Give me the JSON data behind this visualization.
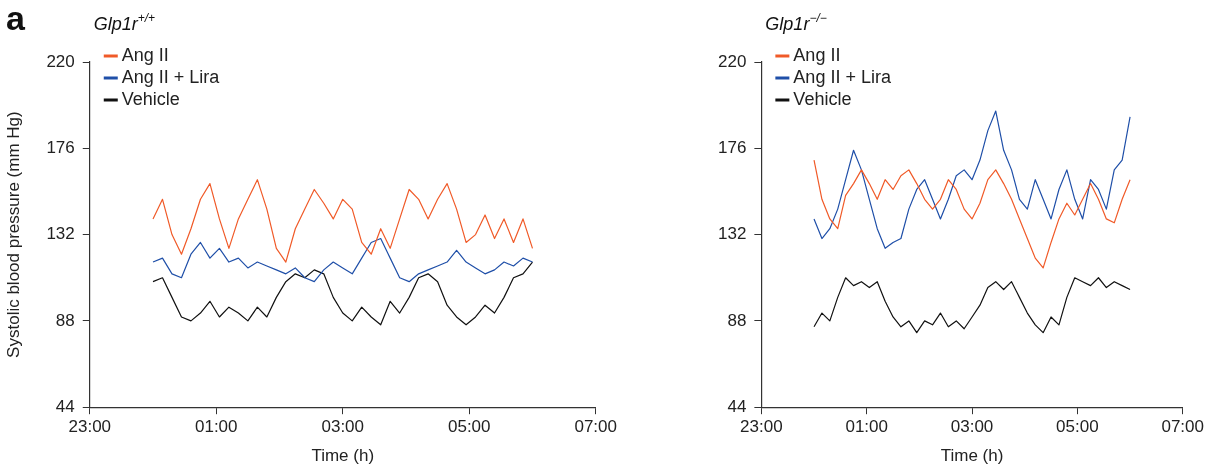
{
  "chart_data": [
    {
      "type": "line",
      "title": "Glp1r$^{+/+}$",
      "xlabel": "Time (h)",
      "ylabel": "Systolic blood pressure (mm Hg)",
      "annotations": [
        "a"
      ],
      "legend": "top left",
      "marker": "none",
      "line_style": "solid",
      "grid": false,
      "xlim": [
        "2000-01-01T23:00",
        "2000-01-02T07:00"
      ],
      "xticks": [
        {
          "value": "2000-01-01T23:00",
          "label": "23:00"
        },
        {
          "value": "2000-01-02T01:00",
          "label": "01:00"
        },
        {
          "value": "2000-01-02T03:00",
          "label": "03:00"
        },
        {
          "value": "2000-01-02T05:00",
          "label": "05:00"
        },
        {
          "value": "2000-01-02T07:00",
          "label": "07:00"
        }
      ],
      "ylim": [
        44,
        220
      ],
      "yticks": [
        44,
        88,
        132,
        176,
        220
      ],
      "x": [
        "2000-01-02T00:00",
        "2000-01-02T00:09",
        "2000-01-02T00:18",
        "2000-01-02T00:27",
        "2000-01-02T00:36",
        "2000-01-02T00:45",
        "2000-01-02T00:54",
        "2000-01-02T01:03",
        "2000-01-02T01:12",
        "2000-01-02T01:21",
        "2000-01-02T01:30",
        "2000-01-02T01:39",
        "2000-01-02T01:48",
        "2000-01-02T01:57",
        "2000-01-02T02:06",
        "2000-01-02T02:15",
        "2000-01-02T02:24",
        "2000-01-02T02:33",
        "2000-01-02T02:42",
        "2000-01-02T02:51",
        "2000-01-02T03:00",
        "2000-01-02T03:09",
        "2000-01-02T03:18",
        "2000-01-02T03:27",
        "2000-01-02T03:36",
        "2000-01-02T03:45",
        "2000-01-02T03:54",
        "2000-01-02T04:03",
        "2000-01-02T04:12",
        "2000-01-02T04:21",
        "2000-01-02T04:30",
        "2000-01-02T04:39",
        "2000-01-02T04:48",
        "2000-01-02T04:57",
        "2000-01-02T05:06",
        "2000-01-02T05:15",
        "2000-01-02T05:24",
        "2000-01-02T05:33",
        "2000-01-02T05:42",
        "2000-01-02T05:51",
        "2000-01-02T06:00"
      ],
      "series": [
        {
          "name": "Ang II",
          "color": "#f05a28",
          "values": [
            140,
            150,
            132,
            122,
            135,
            150,
            158,
            140,
            125,
            140,
            150,
            160,
            145,
            125,
            118,
            135,
            145,
            155,
            148,
            140,
            150,
            145,
            128,
            122,
            135,
            125,
            140,
            155,
            150,
            140,
            150,
            158,
            145,
            128,
            132,
            142,
            130,
            140,
            128,
            140,
            125
          ]
        },
        {
          "name": "Ang II + Lira",
          "color": "#1f4fa8",
          "values": [
            118,
            120,
            112,
            110,
            122,
            128,
            120,
            125,
            118,
            120,
            115,
            118,
            116,
            114,
            112,
            115,
            110,
            108,
            114,
            118,
            115,
            112,
            120,
            128,
            130,
            120,
            110,
            108,
            112,
            114,
            116,
            118,
            124,
            118,
            115,
            112,
            114,
            118,
            116,
            120,
            118
          ]
        },
        {
          "name": "Vehicle",
          "color": "#111111",
          "values": [
            108,
            110,
            100,
            90,
            88,
            92,
            98,
            90,
            95,
            92,
            88,
            95,
            90,
            100,
            108,
            112,
            110,
            114,
            112,
            100,
            92,
            88,
            95,
            90,
            86,
            98,
            92,
            100,
            110,
            112,
            108,
            96,
            90,
            86,
            90,
            96,
            92,
            100,
            110,
            112,
            118
          ]
        }
      ]
    },
    {
      "type": "line",
      "title": "Glp1r$^{−/−}$",
      "xlabel": "Time (h)",
      "legend": "top left",
      "marker": "none",
      "line_style": "solid",
      "grid": false,
      "xlim": [
        "2000-01-01T23:00",
        "2000-01-02T07:00"
      ],
      "xticks": [
        {
          "value": "2000-01-01T23:00",
          "label": "23:00"
        },
        {
          "value": "2000-01-02T01:00",
          "label": "01:00"
        },
        {
          "value": "2000-01-02T03:00",
          "label": "03:00"
        },
        {
          "value": "2000-01-02T05:00",
          "label": "05:00"
        },
        {
          "value": "2000-01-02T07:00",
          "label": "07:00"
        }
      ],
      "ylim": [
        44,
        220
      ],
      "yticks": [
        44,
        88,
        132,
        176,
        220
      ],
      "x": [
        "2000-01-02T00:00",
        "2000-01-02T00:09",
        "2000-01-02T00:18",
        "2000-01-02T00:27",
        "2000-01-02T00:36",
        "2000-01-02T00:45",
        "2000-01-02T00:54",
        "2000-01-02T01:03",
        "2000-01-02T01:12",
        "2000-01-02T01:21",
        "2000-01-02T01:30",
        "2000-01-02T01:39",
        "2000-01-02T01:48",
        "2000-01-02T01:57",
        "2000-01-02T02:06",
        "2000-01-02T02:15",
        "2000-01-02T02:24",
        "2000-01-02T02:33",
        "2000-01-02T02:42",
        "2000-01-02T02:51",
        "2000-01-02T03:00",
        "2000-01-02T03:09",
        "2000-01-02T03:18",
        "2000-01-02T03:27",
        "2000-01-02T03:36",
        "2000-01-02T03:45",
        "2000-01-02T03:54",
        "2000-01-02T04:03",
        "2000-01-02T04:12",
        "2000-01-02T04:21",
        "2000-01-02T04:30",
        "2000-01-02T04:39",
        "2000-01-02T04:48",
        "2000-01-02T04:57",
        "2000-01-02T05:06",
        "2000-01-02T05:15",
        "2000-01-02T05:24",
        "2000-01-02T05:33",
        "2000-01-02T05:42",
        "2000-01-02T05:51",
        "2000-01-02T06:00"
      ],
      "series": [
        {
          "name": "Ang II",
          "color": "#f05a28",
          "values": [
            170,
            150,
            140,
            135,
            152,
            158,
            165,
            158,
            150,
            160,
            155,
            162,
            165,
            158,
            150,
            145,
            150,
            160,
            155,
            145,
            140,
            148,
            160,
            165,
            158,
            150,
            140,
            130,
            120,
            115,
            128,
            140,
            148,
            142,
            150,
            158,
            150,
            140,
            138,
            150,
            160
          ]
        },
        {
          "name": "Ang II + Lira",
          "color": "#1f4fa8",
          "values": [
            140,
            130,
            135,
            145,
            160,
            175,
            165,
            150,
            135,
            125,
            128,
            130,
            145,
            155,
            160,
            150,
            140,
            150,
            162,
            165,
            160,
            170,
            185,
            195,
            175,
            165,
            150,
            145,
            160,
            150,
            140,
            155,
            165,
            150,
            140,
            160,
            155,
            145,
            165,
            170,
            192
          ]
        },
        {
          "name": "Vehicle",
          "color": "#111111",
          "values": [
            85,
            92,
            88,
            100,
            110,
            106,
            108,
            105,
            108,
            98,
            90,
            85,
            88,
            82,
            88,
            86,
            92,
            85,
            88,
            84,
            90,
            96,
            105,
            108,
            104,
            108,
            100,
            92,
            86,
            82,
            90,
            86,
            100,
            110,
            108,
            106,
            110,
            105,
            108,
            106,
            104
          ]
        }
      ]
    }
  ]
}
